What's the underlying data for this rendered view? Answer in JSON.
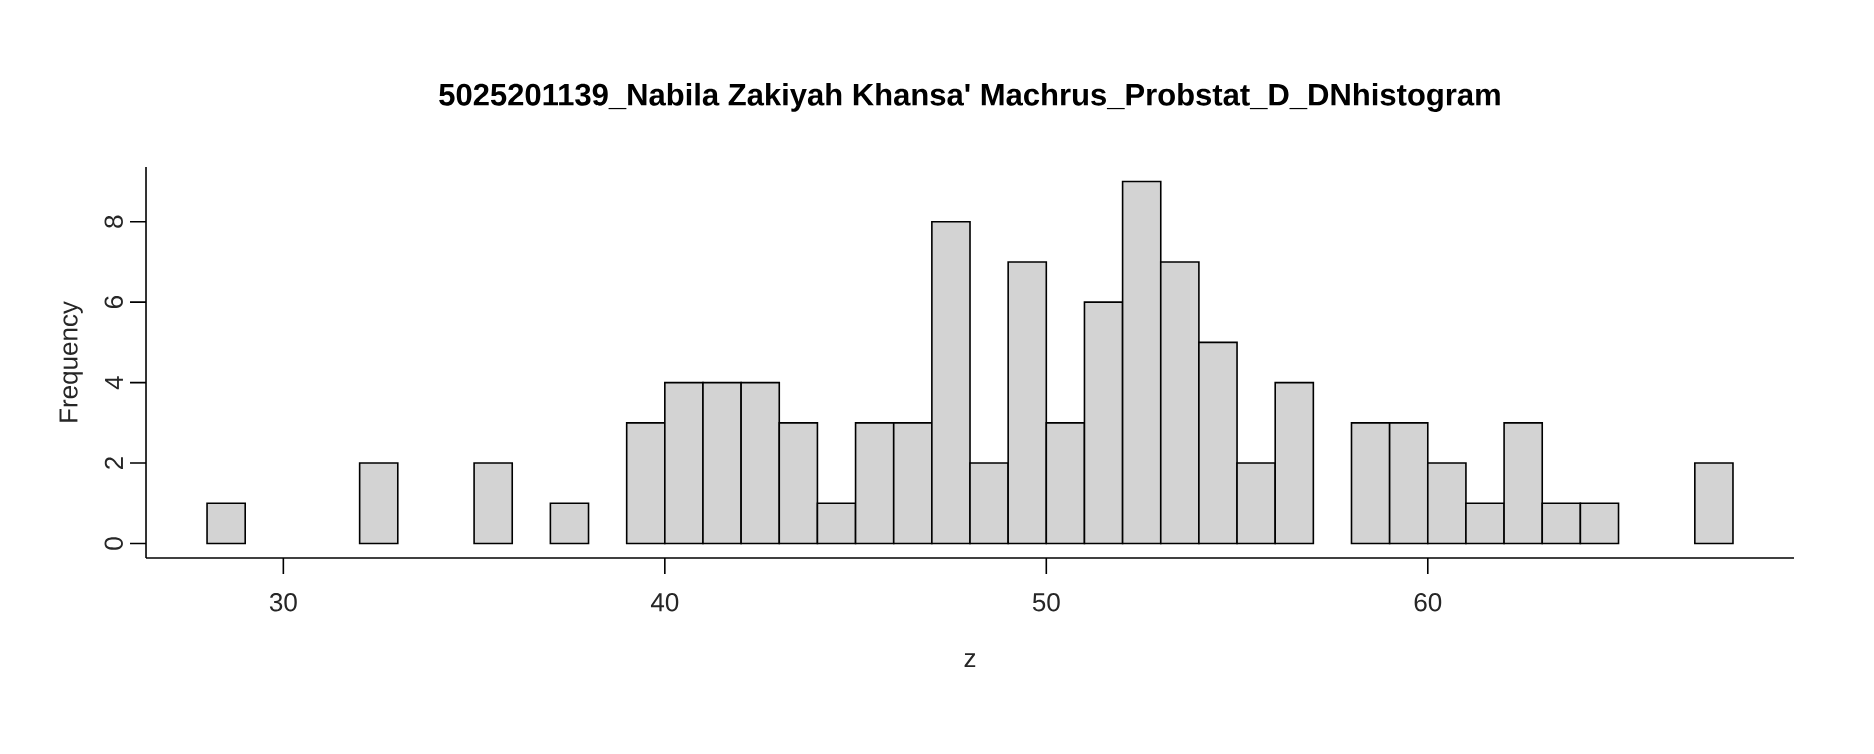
{
  "chart_data": {
    "type": "histogram",
    "title": "5025201139_Nabila Zakiyah Khansa' Machrus_Probstat_D_DNhistogram",
    "xlabel": "z",
    "ylabel": "Frequency",
    "bins": [
      28,
      29,
      30,
      31,
      32,
      33,
      34,
      35,
      36,
      37,
      38,
      39,
      40,
      41,
      42,
      43,
      44,
      45,
      46,
      47,
      48,
      49,
      50,
      51,
      52,
      53,
      54,
      55,
      56,
      57,
      58,
      59,
      60,
      61,
      62,
      63,
      64,
      65,
      66,
      67,
      68
    ],
    "values": [
      1,
      0,
      0,
      0,
      2,
      0,
      0,
      2,
      0,
      1,
      0,
      3,
      4,
      4,
      4,
      3,
      1,
      3,
      3,
      8,
      2,
      7,
      3,
      6,
      9,
      7,
      5,
      2,
      4,
      0,
      3,
      3,
      2,
      1,
      3,
      1,
      1,
      0,
      0,
      2
    ],
    "color": "#d3d3d3",
    "xlim": [
      26.4,
      69.6
    ],
    "ylim": [
      -0.36,
      9.36
    ],
    "xticks": [
      30,
      40,
      50,
      60
    ],
    "yticks": [
      0,
      2,
      4,
      6,
      8
    ]
  }
}
